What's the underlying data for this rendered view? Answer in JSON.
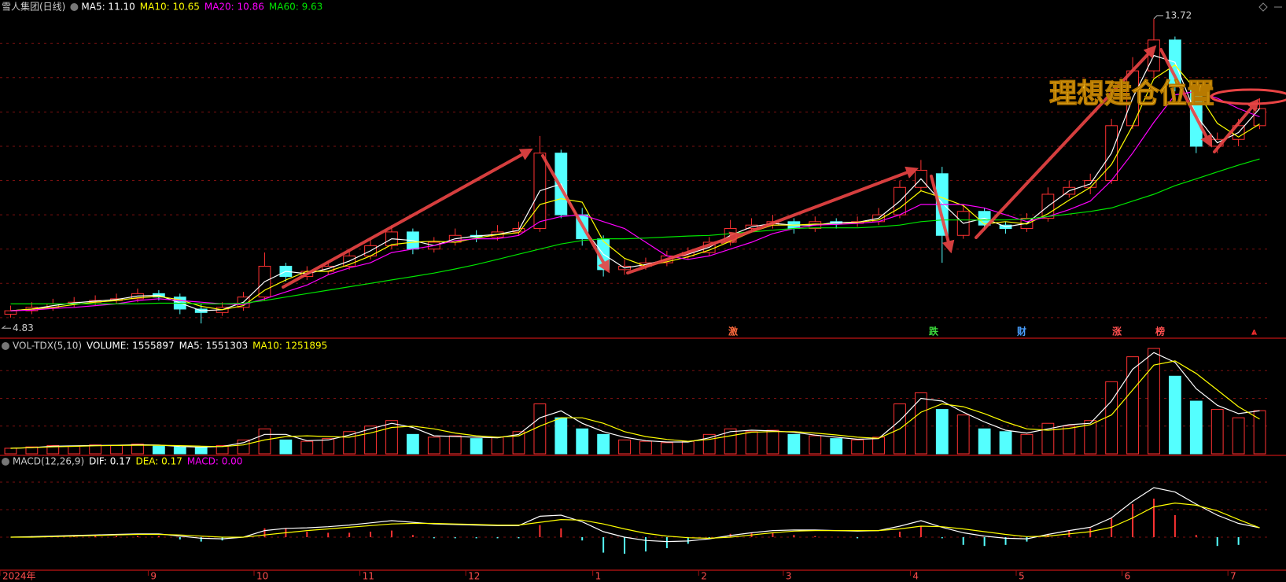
{
  "chart_data": [
    {
      "type": "candlestick",
      "title": "雪人集团(日线)",
      "ohlc": [
        [
          5.1,
          5.35,
          5.0,
          5.2
        ],
        [
          5.2,
          5.45,
          5.1,
          5.3
        ],
        [
          5.3,
          5.55,
          5.2,
          5.4
        ],
        [
          5.4,
          5.6,
          5.3,
          5.45
        ],
        [
          5.45,
          5.65,
          5.35,
          5.5
        ],
        [
          5.5,
          5.7,
          5.4,
          5.55
        ],
        [
          5.55,
          5.85,
          5.45,
          5.7
        ],
        [
          5.7,
          5.8,
          5.5,
          5.6
        ],
        [
          5.6,
          5.7,
          5.1,
          5.25
        ],
        [
          5.25,
          5.4,
          4.83,
          5.15
        ],
        [
          5.15,
          5.45,
          5.05,
          5.3
        ],
        [
          5.3,
          5.75,
          5.2,
          5.6
        ],
        [
          5.6,
          6.9,
          5.5,
          6.5
        ],
        [
          6.5,
          6.6,
          6.05,
          6.2
        ],
        [
          6.2,
          6.5,
          6.1,
          6.35
        ],
        [
          6.35,
          6.65,
          6.25,
          6.5
        ],
        [
          6.5,
          6.95,
          6.4,
          6.8
        ],
        [
          6.8,
          7.3,
          6.7,
          7.1
        ],
        [
          7.1,
          7.7,
          7.0,
          7.5
        ],
        [
          7.5,
          7.6,
          6.85,
          7.0
        ],
        [
          7.0,
          7.35,
          6.9,
          7.2
        ],
        [
          7.2,
          7.6,
          7.1,
          7.4
        ],
        [
          7.4,
          7.55,
          7.2,
          7.35
        ],
        [
          7.35,
          7.7,
          7.25,
          7.5
        ],
        [
          7.5,
          7.8,
          7.4,
          7.6
        ],
        [
          7.6,
          10.3,
          7.5,
          9.8
        ],
        [
          9.8,
          9.9,
          7.9,
          8.0
        ],
        [
          8.0,
          8.2,
          7.1,
          7.3
        ],
        [
          7.3,
          7.4,
          6.2,
          6.4
        ],
        [
          6.4,
          6.7,
          6.25,
          6.5
        ],
        [
          6.5,
          6.75,
          6.4,
          6.6
        ],
        [
          6.6,
          6.95,
          6.5,
          6.8
        ],
        [
          6.8,
          7.05,
          6.7,
          6.9
        ],
        [
          6.9,
          7.35,
          6.8,
          7.2
        ],
        [
          7.2,
          7.85,
          7.1,
          7.6
        ],
        [
          7.6,
          7.9,
          7.5,
          7.7
        ],
        [
          7.7,
          8.0,
          7.6,
          7.8
        ],
        [
          7.8,
          7.9,
          7.45,
          7.6
        ],
        [
          7.6,
          7.95,
          7.5,
          7.8
        ],
        [
          7.8,
          7.9,
          7.6,
          7.75
        ],
        [
          7.75,
          7.95,
          7.65,
          7.8
        ],
        [
          7.8,
          8.2,
          7.7,
          8.0
        ],
        [
          8.0,
          9.0,
          7.9,
          8.8
        ],
        [
          8.8,
          9.6,
          8.7,
          9.3
        ],
        [
          9.2,
          9.4,
          6.6,
          7.4
        ],
        [
          7.4,
          8.3,
          7.3,
          8.1
        ],
        [
          8.1,
          8.2,
          7.55,
          7.7
        ],
        [
          7.7,
          7.8,
          7.45,
          7.6
        ],
        [
          7.6,
          8.05,
          7.5,
          7.9
        ],
        [
          7.9,
          8.8,
          7.8,
          8.6
        ],
        [
          8.6,
          9.0,
          8.5,
          8.8
        ],
        [
          8.8,
          9.2,
          8.6,
          9.0
        ],
        [
          9.0,
          10.8,
          8.9,
          10.6
        ],
        [
          10.6,
          12.6,
          10.5,
          12.2
        ],
        [
          12.2,
          13.72,
          12.0,
          13.1
        ],
        [
          13.1,
          13.2,
          11.6,
          11.8
        ],
        [
          11.8,
          11.9,
          9.8,
          10.0
        ],
        [
          10.0,
          10.4,
          9.8,
          10.2
        ],
        [
          10.2,
          10.8,
          10.0,
          10.6
        ],
        [
          10.6,
          11.4,
          10.5,
          11.1
        ]
      ],
      "up_color": "#ff3232",
      "down_color": "#54ffff",
      "series": [
        {
          "name": "MA5",
          "label": "MA5: 11.10",
          "color": "#ffffff",
          "values": [
            5.2,
            5.25,
            5.35,
            5.43,
            5.48,
            5.53,
            5.63,
            5.65,
            5.43,
            5.2,
            5.23,
            5.45,
            6.05,
            6.35,
            6.28,
            6.43,
            6.65,
            6.95,
            7.3,
            7.25,
            7.1,
            7.3,
            7.38,
            7.43,
            7.55,
            8.7,
            8.9,
            7.65,
            6.85,
            6.45,
            6.55,
            6.7,
            6.85,
            7.05,
            7.4,
            7.65,
            7.75,
            7.7,
            7.7,
            7.78,
            7.78,
            7.9,
            8.4,
            9.05,
            8.35,
            7.75,
            7.9,
            7.65,
            7.75,
            8.25,
            8.7,
            8.9,
            9.8,
            11.4,
            12.65,
            12.45,
            10.9,
            10.1,
            10.4,
            11.1
          ]
        },
        {
          "name": "MA10",
          "label": "MA10: 10.65",
          "color": "#ffff00",
          "values": [
            5.2,
            5.25,
            5.3,
            5.38,
            5.45,
            5.5,
            5.58,
            5.62,
            5.52,
            5.33,
            5.23,
            5.35,
            5.8,
            6.1,
            6.35,
            6.35,
            6.55,
            6.8,
            7.13,
            7.2,
            7.23,
            7.2,
            7.32,
            7.42,
            7.48,
            8.3,
            8.47,
            8.37,
            7.23,
            6.73,
            6.5,
            6.63,
            6.77,
            6.97,
            7.23,
            7.5,
            7.7,
            7.7,
            7.73,
            7.72,
            7.78,
            7.85,
            8.2,
            8.7,
            8.5,
            8.27,
            7.73,
            7.8,
            7.73,
            8.03,
            8.43,
            8.8,
            9.47,
            10.6,
            11.97,
            12.37,
            11.63,
            10.67,
            10.27,
            10.65
          ]
        },
        {
          "name": "MA20",
          "label": "MA20: 10.86",
          "color": "#ff00ff",
          "values": [
            5.2,
            5.22,
            5.27,
            5.3,
            5.35,
            5.4,
            5.5,
            5.55,
            5.5,
            5.45,
            5.4,
            5.38,
            5.55,
            5.75,
            5.95,
            6.25,
            6.45,
            6.6,
            6.9,
            7.0,
            7.1,
            7.25,
            7.3,
            7.3,
            7.4,
            7.8,
            7.95,
            8.0,
            7.8,
            7.6,
            7.2,
            6.8,
            6.7,
            6.8,
            7.0,
            7.2,
            7.45,
            7.6,
            7.7,
            7.72,
            7.75,
            7.8,
            8.0,
            8.3,
            8.3,
            8.3,
            8.2,
            8.0,
            7.8,
            7.95,
            8.15,
            8.4,
            9.0,
            9.8,
            10.7,
            11.5,
            11.6,
            11.4,
            11.1,
            10.86
          ]
        },
        {
          "name": "MA60",
          "label": "MA60: 9.63",
          "color": "#00e600",
          "values": [
            5.4,
            5.4,
            5.4,
            5.4,
            5.4,
            5.4,
            5.4,
            5.42,
            5.42,
            5.4,
            5.4,
            5.42,
            5.5,
            5.6,
            5.7,
            5.8,
            5.9,
            6.0,
            6.1,
            6.2,
            6.3,
            6.42,
            6.55,
            6.7,
            6.85,
            7.0,
            7.15,
            7.25,
            7.3,
            7.3,
            7.32,
            7.35,
            7.38,
            7.4,
            7.45,
            7.5,
            7.55,
            7.6,
            7.62,
            7.62,
            7.62,
            7.65,
            7.7,
            7.8,
            7.85,
            7.85,
            7.85,
            7.85,
            7.88,
            7.95,
            8.02,
            8.1,
            8.2,
            8.4,
            8.6,
            8.85,
            9.05,
            9.25,
            9.45,
            9.63
          ]
        }
      ],
      "ylim": [
        4.4,
        13.9
      ],
      "ygrid": [
        5,
        6,
        7,
        8,
        9,
        10,
        11,
        12,
        13
      ],
      "max_label": 13.72,
      "min_label": 4.83,
      "annotation": "理想建仓位置",
      "event_tags": [
        "激",
        "跌",
        "财",
        "涨",
        "榜",
        "⩓"
      ]
    },
    {
      "type": "bar",
      "title": "VOL-TDX(5,10)",
      "series": [
        {
          "name": "VOLUME",
          "label": "VOLUME: 1555897",
          "style": "bar",
          "color": "#ffffff",
          "values": [
            200000,
            250000,
            300000,
            280000,
            320000,
            300000,
            350000,
            280000,
            250000,
            230000,
            300000,
            500000,
            900000,
            500000,
            450000,
            550000,
            800000,
            1000000,
            1200000,
            700000,
            600000,
            650000,
            550000,
            600000,
            800000,
            1800000,
            1300000,
            900000,
            700000,
            500000,
            450000,
            400000,
            450000,
            700000,
            900000,
            800000,
            850000,
            700000,
            650000,
            550000,
            500000,
            600000,
            1800000,
            2200000,
            1600000,
            1400000,
            900000,
            800000,
            700000,
            1100000,
            1000000,
            1200000,
            2600000,
            3500000,
            3800000,
            2800000,
            1900000,
            1600000,
            1300000,
            1555897
          ]
        },
        {
          "name": "MA5",
          "label": "MA5: 1551303",
          "style": "line",
          "color": "#ffffff",
          "values": [
            200000,
            225000,
            275000,
            290000,
            300000,
            310000,
            325000,
            315000,
            265000,
            240000,
            265000,
            400000,
            700000,
            700000,
            475000,
            500000,
            675000,
            900000,
            1100000,
            950000,
            650000,
            625000,
            600000,
            575000,
            700000,
            1300000,
            1550000,
            1100000,
            800000,
            600000,
            475000,
            425000,
            425000,
            575000,
            800000,
            850000,
            825000,
            775000,
            675000,
            600000,
            525000,
            550000,
            1200000,
            2000000,
            1900000,
            1500000,
            1150000,
            850000,
            750000,
            900000,
            1050000,
            1100000,
            1900000,
            3050000,
            3650000,
            3300000,
            2350000,
            1750000,
            1450000,
            1551303
          ]
        },
        {
          "name": "MA10",
          "label": "MA10: 1251895",
          "style": "line",
          "color": "#ffff00",
          "values": [
            200000,
            220000,
            250000,
            270000,
            290000,
            300000,
            310000,
            310000,
            295000,
            275000,
            260000,
            320000,
            500000,
            620000,
            650000,
            620000,
            600000,
            750000,
            950000,
            1000000,
            900000,
            750000,
            650000,
            600000,
            650000,
            1000000,
            1300000,
            1300000,
            1100000,
            800000,
            620000,
            520000,
            450000,
            520000,
            650000,
            780000,
            800000,
            800000,
            750000,
            680000,
            600000,
            560000,
            900000,
            1500000,
            1800000,
            1700000,
            1450000,
            1150000,
            900000,
            850000,
            920000,
            1050000,
            1400000,
            2300000,
            3200000,
            3350000,
            2900000,
            2300000,
            1700000,
            1251895
          ]
        }
      ],
      "ylim": [
        0,
        4000000
      ],
      "ygrid": [
        1000000,
        2000000,
        3000000
      ]
    },
    {
      "type": "macd",
      "title": "MACD(12,26,9)",
      "categories": [
        "2024年",
        null,
        null,
        null,
        null,
        null,
        null,
        "9",
        null,
        null,
        null,
        null,
        "10",
        null,
        null,
        null,
        null,
        "11",
        null,
        null,
        null,
        null,
        "12",
        null,
        null,
        null,
        null,
        null,
        "1",
        null,
        null,
        null,
        null,
        "2",
        null,
        null,
        null,
        "3",
        null,
        null,
        null,
        null,
        null,
        "4",
        null,
        null,
        null,
        null,
        "5",
        null,
        null,
        null,
        null,
        "6",
        null,
        null,
        null,
        null,
        "7",
        null
      ],
      "series": [
        {
          "name": "DIF",
          "label": "DIF: 0.17",
          "style": "line",
          "color": "#ffffff",
          "values": [
            0.0,
            0.01,
            0.02,
            0.03,
            0.04,
            0.05,
            0.06,
            0.06,
            0.02,
            -0.02,
            -0.03,
            0.0,
            0.12,
            0.16,
            0.17,
            0.19,
            0.22,
            0.26,
            0.3,
            0.27,
            0.24,
            0.23,
            0.22,
            0.21,
            0.21,
            0.38,
            0.4,
            0.28,
            0.1,
            0.0,
            -0.06,
            -0.08,
            -0.07,
            -0.03,
            0.03,
            0.08,
            0.12,
            0.13,
            0.13,
            0.12,
            0.11,
            0.12,
            0.2,
            0.3,
            0.18,
            0.08,
            0.02,
            -0.02,
            -0.03,
            0.05,
            0.12,
            0.18,
            0.35,
            0.65,
            0.9,
            0.82,
            0.6,
            0.4,
            0.25,
            0.17
          ]
        },
        {
          "name": "DEA",
          "label": "DEA: 0.17",
          "style": "line",
          "color": "#ffff00",
          "values": [
            0.0,
            0.0,
            0.01,
            0.02,
            0.03,
            0.04,
            0.05,
            0.05,
            0.04,
            0.02,
            0.0,
            0.0,
            0.04,
            0.08,
            0.12,
            0.15,
            0.18,
            0.21,
            0.24,
            0.25,
            0.25,
            0.24,
            0.23,
            0.22,
            0.22,
            0.27,
            0.32,
            0.31,
            0.24,
            0.15,
            0.07,
            0.02,
            -0.01,
            -0.02,
            0.0,
            0.04,
            0.08,
            0.11,
            0.12,
            0.12,
            0.12,
            0.12,
            0.15,
            0.2,
            0.19,
            0.15,
            0.1,
            0.05,
            0.01,
            0.02,
            0.06,
            0.1,
            0.18,
            0.35,
            0.55,
            0.62,
            0.58,
            0.48,
            0.32,
            0.17
          ]
        },
        {
          "name": "MACD",
          "label": "MACD: 0.00",
          "style": "histogram",
          "color": "#ff00ff",
          "values": [
            0,
            0.02,
            0.02,
            0.02,
            0.02,
            0.02,
            0.02,
            0.02,
            -0.04,
            -0.08,
            -0.06,
            0,
            0.16,
            0.16,
            0.1,
            0.08,
            0.08,
            0.1,
            0.12,
            0.04,
            -0.02,
            -0.02,
            -0.02,
            -0.02,
            -0.02,
            0.22,
            0.16,
            -0.06,
            -0.28,
            -0.3,
            -0.26,
            -0.2,
            -0.12,
            -0.02,
            0.06,
            0.08,
            0.08,
            0.04,
            0.02,
            0,
            -0.02,
            0,
            0.1,
            0.2,
            -0.02,
            -0.14,
            -0.16,
            -0.14,
            -0.08,
            0.06,
            0.12,
            0.16,
            0.34,
            0.6,
            0.7,
            0.4,
            0.04,
            -0.16,
            -0.14,
            0.0
          ]
        }
      ],
      "ylim": [
        -0.6,
        1.4
      ],
      "ygrid": [
        0,
        0.5,
        1
      ]
    }
  ]
}
